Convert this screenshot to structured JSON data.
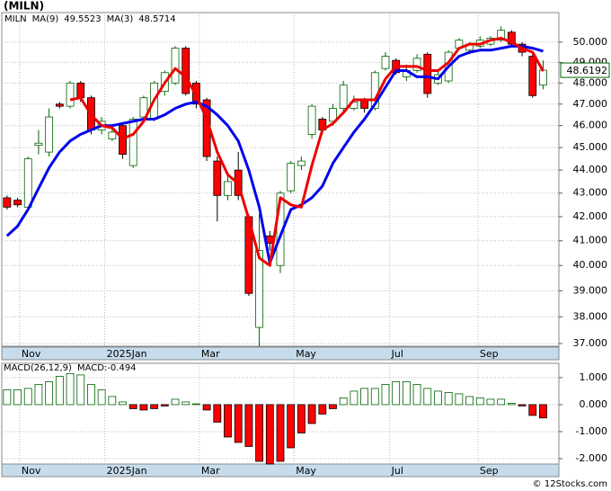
{
  "chart_data": [
    {
      "type": "candlestick",
      "title": "(MILN)",
      "name": "MILN",
      "open": [
        42.8,
        42.7,
        42.4,
        45.1,
        44.8,
        47.0,
        46.9,
        48.0,
        47.3,
        45.8,
        45.4,
        46.0,
        44.2,
        46.4,
        46.3,
        47.6,
        48.0,
        49.7,
        48.0,
        47.2,
        44.4,
        42.9,
        44.0,
        42.0,
        37.6,
        41.2,
        40.0,
        43.1,
        44.2,
        45.6,
        46.3,
        46.2,
        46.8,
        46.8,
        47.2,
        46.8,
        48.7,
        49.1,
        48.3,
        48.6,
        49.4,
        48.0,
        48.1,
        49.7,
        49.6,
        49.8,
        49.9,
        50.1,
        50.5,
        49.9,
        49.3,
        47.9
      ],
      "high": [
        42.9,
        42.8,
        44.6,
        45.8,
        46.8,
        47.1,
        48.1,
        48.1,
        47.4,
        46.4,
        46.0,
        46.1,
        46.4,
        47.4,
        48.1,
        48.6,
        49.8,
        49.8,
        48.1,
        47.3,
        44.6,
        43.8,
        44.8,
        42.1,
        42.1,
        41.4,
        43.1,
        44.4,
        44.6,
        47.0,
        46.4,
        47.0,
        48.1,
        47.4,
        47.3,
        48.6,
        49.5,
        49.2,
        48.9,
        49.4,
        49.5,
        48.6,
        49.6,
        50.2,
        50.0,
        50.3,
        50.3,
        50.8,
        50.6,
        50.0,
        49.4,
        49.1
      ],
      "low": [
        42.3,
        42.4,
        42.3,
        44.7,
        44.6,
        46.8,
        46.8,
        47.1,
        45.6,
        45.6,
        45.3,
        44.5,
        44.1,
        46.2,
        46.2,
        47.4,
        47.9,
        47.4,
        46.8,
        44.4,
        41.8,
        42.7,
        42.7,
        38.8,
        36.9,
        40.6,
        39.7,
        43.0,
        44.0,
        45.4,
        45.6,
        46.0,
        46.6,
        46.7,
        46.6,
        46.7,
        48.6,
        48.4,
        48.1,
        48.5,
        47.3,
        47.9,
        48.0,
        49.6,
        49.4,
        49.7,
        49.8,
        50.0,
        49.8,
        49.3,
        47.3,
        47.7
      ],
      "close": [
        42.4,
        42.5,
        44.5,
        45.2,
        46.4,
        46.9,
        48.0,
        47.3,
        45.8,
        46.2,
        45.7,
        44.7,
        46.3,
        47.3,
        48.0,
        48.5,
        49.7,
        47.5,
        47.0,
        44.6,
        42.9,
        43.5,
        42.9,
        38.9,
        40.6,
        40.9,
        43.0,
        44.3,
        44.4,
        46.9,
        45.8,
        46.8,
        47.9,
        47.1,
        46.8,
        48.5,
        49.3,
        48.5,
        48.6,
        49.2,
        47.5,
        48.4,
        49.5,
        50.1,
        49.9,
        50.1,
        50.2,
        50.6,
        49.9,
        49.5,
        47.4,
        48.6192
      ],
      "up_color": "#006400",
      "down_color": "#ff0000",
      "series": [
        {
          "name": "MA(9)",
          "color": "#0000ee",
          "last": 49.5523,
          "values": [
            41.2,
            41.6,
            42.3,
            43.2,
            44.1,
            44.8,
            45.3,
            45.6,
            45.8,
            46.0,
            46.0,
            46.1,
            46.2,
            46.3,
            46.3,
            46.5,
            46.8,
            47.0,
            47.1,
            46.9,
            46.5,
            46.0,
            45.3,
            44.0,
            42.4,
            40.1,
            41.2,
            42.3,
            42.5,
            42.8,
            43.3,
            44.3,
            45.0,
            45.7,
            46.3,
            47.0,
            47.8,
            48.6,
            48.6,
            48.3,
            48.3,
            48.2,
            48.8,
            49.3,
            49.5,
            49.6,
            49.6,
            49.7,
            49.8,
            49.8,
            49.7,
            49.5523
          ]
        },
        {
          "name": "MA(3)",
          "color": "#ee0000",
          "last": 48.5714,
          "values": [
            null,
            null,
            null,
            null,
            null,
            null,
            47.2,
            47.3,
            46.5,
            46.0,
            45.9,
            45.4,
            45.6,
            46.2,
            47.2,
            48.0,
            48.7,
            48.3,
            47.4,
            46.3,
            44.8,
            43.8,
            43.4,
            41.9,
            40.3,
            40.0,
            42.8,
            42.5,
            42.4,
            44.2,
            45.8,
            46.1,
            46.6,
            47.2,
            47.2,
            47.2,
            48.2,
            48.8,
            48.8,
            48.8,
            48.6,
            48.6,
            49.0,
            49.7,
            49.9,
            49.9,
            50.1,
            50.2,
            50.0,
            49.7,
            49.5,
            48.5714
          ]
        }
      ],
      "last_price": 48.6192,
      "log_y": true,
      "grid": true,
      "ylim": [
        36.9,
        51.5
      ],
      "yticks": [
        {
          "value": 37,
          "label": "37.000"
        },
        {
          "value": 38,
          "label": "38.000"
        },
        {
          "value": 39,
          "label": "39.000"
        },
        {
          "value": 40,
          "label": "40.000"
        },
        {
          "value": 41,
          "label": "41.000"
        },
        {
          "value": 42,
          "label": "42.000"
        },
        {
          "value": 43,
          "label": "43.000"
        },
        {
          "value": 44,
          "label": "44.000"
        },
        {
          "value": 45,
          "label": "45.000"
        },
        {
          "value": 46,
          "label": "46.000"
        },
        {
          "value": 47,
          "label": "47.000"
        },
        {
          "value": 48,
          "label": "48.000"
        },
        {
          "value": 49,
          "label": "49.000"
        },
        {
          "value": 50,
          "label": "50.000"
        }
      ],
      "xlim": [
        -0.5,
        52.5
      ],
      "xticks": [
        {
          "value": 1.2,
          "label": "Nov"
        },
        {
          "value": 9.3,
          "label": "2025Jan"
        },
        {
          "value": 18.3,
          "label": "Mar"
        },
        {
          "value": 27.3,
          "label": "May"
        },
        {
          "value": 36.4,
          "label": "Jul"
        },
        {
          "value": 44.8,
          "label": "Sep"
        }
      ]
    },
    {
      "type": "bar",
      "title": "MACD(26,12,9)",
      "value_name": "MACD:",
      "last": -0.494,
      "values": [
        0.55,
        0.55,
        0.6,
        0.75,
        0.85,
        1.05,
        1.15,
        1.1,
        0.75,
        0.55,
        0.3,
        0.1,
        -0.15,
        -0.2,
        -0.15,
        -0.05,
        0.2,
        0.1,
        0.03,
        -0.2,
        -0.65,
        -1.2,
        -1.4,
        -1.55,
        -2.1,
        -2.2,
        -2.1,
        -1.6,
        -1.05,
        -0.7,
        -0.35,
        -0.15,
        0.25,
        0.5,
        0.6,
        0.6,
        0.75,
        0.85,
        0.85,
        0.75,
        0.6,
        0.5,
        0.45,
        0.4,
        0.3,
        0.25,
        0.2,
        0.2,
        0.05,
        -0.05,
        -0.4,
        -0.494
      ],
      "up_color": "#006400",
      "down_color": "#ff0000",
      "grid": true,
      "ylim": [
        -2.2,
        1.53
      ],
      "yticks": [
        {
          "value": -2,
          "label": "-2.000"
        },
        {
          "value": -1,
          "label": "-1.000"
        },
        {
          "value": 0,
          "label": "0.000"
        },
        {
          "value": 1,
          "label": "1.000"
        }
      ],
      "xlim": [
        -0.5,
        52.5
      ],
      "xticks": [
        {
          "value": 1.2,
          "label": "Nov"
        },
        {
          "value": 9.3,
          "label": "2025Jan"
        },
        {
          "value": 18.3,
          "label": "Mar"
        },
        {
          "value": 27.3,
          "label": "May"
        },
        {
          "value": 36.4,
          "label": "Jul"
        },
        {
          "value": 44.8,
          "label": "Sep"
        }
      ]
    }
  ],
  "footer": "© 12Stocks.com"
}
